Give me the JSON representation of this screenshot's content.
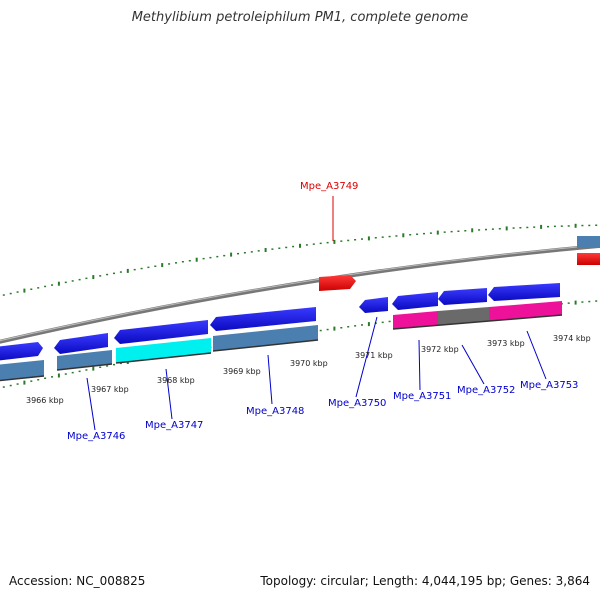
{
  "title": "Methylibium petroleiphilum PM1, complete genome",
  "footer": {
    "accession": "Accession: NC_008825",
    "summary": "Topology: circular; Length: 4,044,195 bp; Genes: 3,864"
  },
  "scale_labels": [
    "3966 kbp",
    "3967 kbp",
    "3968 kbp",
    "3969 kbp",
    "3970 kbp",
    "3971 kbp",
    "3972 kbp",
    "3973 kbp",
    "3974 kbp"
  ],
  "genes": [
    {
      "id": "Mpe_A3746",
      "color": "#0000cc"
    },
    {
      "id": "Mpe_A3747",
      "color": "#0000cc"
    },
    {
      "id": "Mpe_A3748",
      "color": "#0000cc"
    },
    {
      "id": "Mpe_A3749",
      "color": "#dd0000"
    },
    {
      "id": "Mpe_A3750",
      "color": "#0000cc"
    },
    {
      "id": "Mpe_A3751",
      "color": "#0000cc"
    },
    {
      "id": "Mpe_A3752",
      "color": "#0000cc"
    },
    {
      "id": "Mpe_A3753",
      "color": "#0000cc"
    }
  ],
  "colors": {
    "cds_blue": "#1a1aee",
    "cds_red": "#ee1111",
    "feature_steel": "#4a7fb0",
    "feature_cyan": "#00f0f0",
    "feature_magenta": "#ee1199",
    "feature_gray": "#6a6a6a",
    "backbone": "#8a8a8a",
    "ticks": "#2a7a2a"
  }
}
